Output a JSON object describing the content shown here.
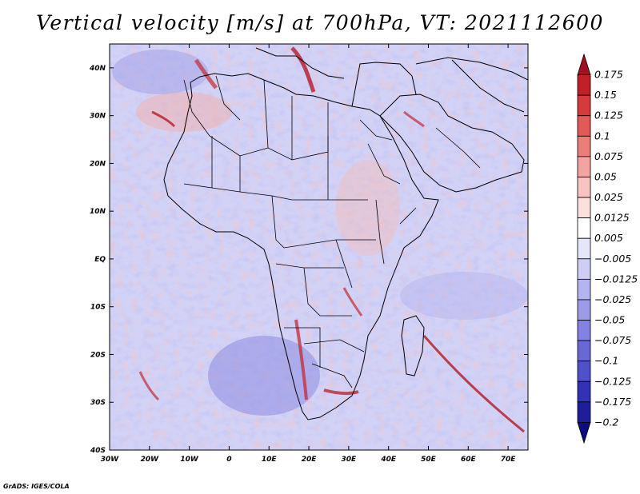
{
  "title": "Vertical velocity [m/s] at 700hPa, VT: 2021112600",
  "footer": "GrADS: IGES/COLA",
  "map": {
    "lon_range": [
      -30,
      75
    ],
    "lat_range": [
      -40,
      45
    ],
    "lon_ticks": [
      "30W",
      "20W",
      "10W",
      "0",
      "10E",
      "20E",
      "30E",
      "40E",
      "50E",
      "60E",
      "70E"
    ],
    "lat_ticks": [
      "40N",
      "30N",
      "20N",
      "10N",
      "EQ",
      "10S",
      "20S",
      "30S",
      "40S"
    ]
  },
  "colorbar": {
    "labels": [
      "0.175",
      "0.15",
      "0.125",
      "0.1",
      "0.075",
      "0.05",
      "0.025",
      "0.0125",
      "0.005",
      "−0.005",
      "−0.0125",
      "−0.025",
      "−0.05",
      "−0.075",
      "−0.1",
      "−0.125",
      "−0.175",
      "−0.2"
    ],
    "colors": [
      "#a01020",
      "#c02028",
      "#d63a3a",
      "#e25a58",
      "#ec7e7a",
      "#f4a4a0",
      "#f8c4c0",
      "#fce0dc",
      "#ffffff",
      "#e6e6fa",
      "#cdcdf6",
      "#b4b4f0",
      "#9b9be8",
      "#8282e0",
      "#6969d6",
      "#5050c8",
      "#3232b4",
      "#1e1e9a",
      "#0c0c80"
    ]
  }
}
